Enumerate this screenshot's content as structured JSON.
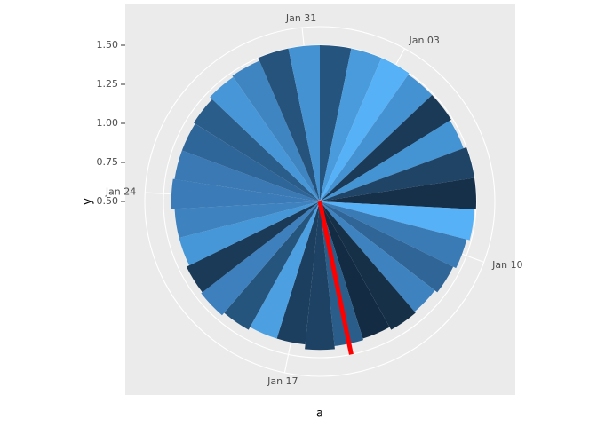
{
  "chart_data": {
    "type": "polar_bar",
    "x_label": "a",
    "y_label": "y",
    "x": [
      1,
      2,
      3,
      4,
      5,
      6,
      7,
      8,
      9,
      10,
      11,
      12,
      13,
      14,
      15,
      16,
      17,
      18,
      19,
      20,
      21,
      22,
      23,
      24,
      25,
      26,
      27,
      28,
      29,
      30,
      31
    ],
    "values": [
      1.5,
      1.5,
      1.5,
      1.49,
      1.49,
      1.48,
      1.5,
      1.5,
      1.49,
      1.47,
      1.45,
      1.43,
      1.44,
      1.42,
      1.43,
      1.45,
      1.42,
      1.42,
      1.44,
      1.46,
      1.45,
      1.43,
      1.43,
      1.45,
      1.44,
      1.44,
      1.45,
      1.47,
      1.48,
      1.5,
      1.5
    ],
    "colors": [
      "#25557f",
      "#4a9bdc",
      "#56b1f7",
      "#4592d2",
      "#1a3a58",
      "#4493d3",
      "#1f4466",
      "#17304a",
      "#56b1f7",
      "#3a7bb5",
      "#2f6597",
      "#3e82bf",
      "#163048",
      "#132b43",
      "#2a5d8a",
      "#1e4263",
      "#1c3f5f",
      "#4ca0e2",
      "#25547d",
      "#3d80bd",
      "#1a3a58",
      "#4597d8",
      "#3e82bf",
      "#3b7cb8",
      "#3a79b3",
      "#2f6699",
      "#2a5d8a",
      "#4797d8",
      "#3f85c2",
      "#25537c",
      "#4592d2"
    ],
    "highlight": {
      "x": 15,
      "color": "#ff0000"
    },
    "xlim": [
      0.5,
      31.5
    ],
    "xticks": [
      {
        "value": 3,
        "label": "Jan 03"
      },
      {
        "value": 10,
        "label": "Jan 10"
      },
      {
        "value": 17,
        "label": "Jan 17"
      },
      {
        "value": 24,
        "label": "Jan 24"
      },
      {
        "value": 31,
        "label": "Jan 31"
      }
    ],
    "ylim": [
      0.5,
      1.5
    ],
    "yticks": [
      {
        "value": 0.5,
        "label": "0.50"
      },
      {
        "value": 0.75,
        "label": "0.75"
      },
      {
        "value": 1.0,
        "label": "1.00"
      },
      {
        "value": 1.25,
        "label": "1.25"
      },
      {
        "value": 1.5,
        "label": "1.50"
      }
    ],
    "grid": true
  }
}
